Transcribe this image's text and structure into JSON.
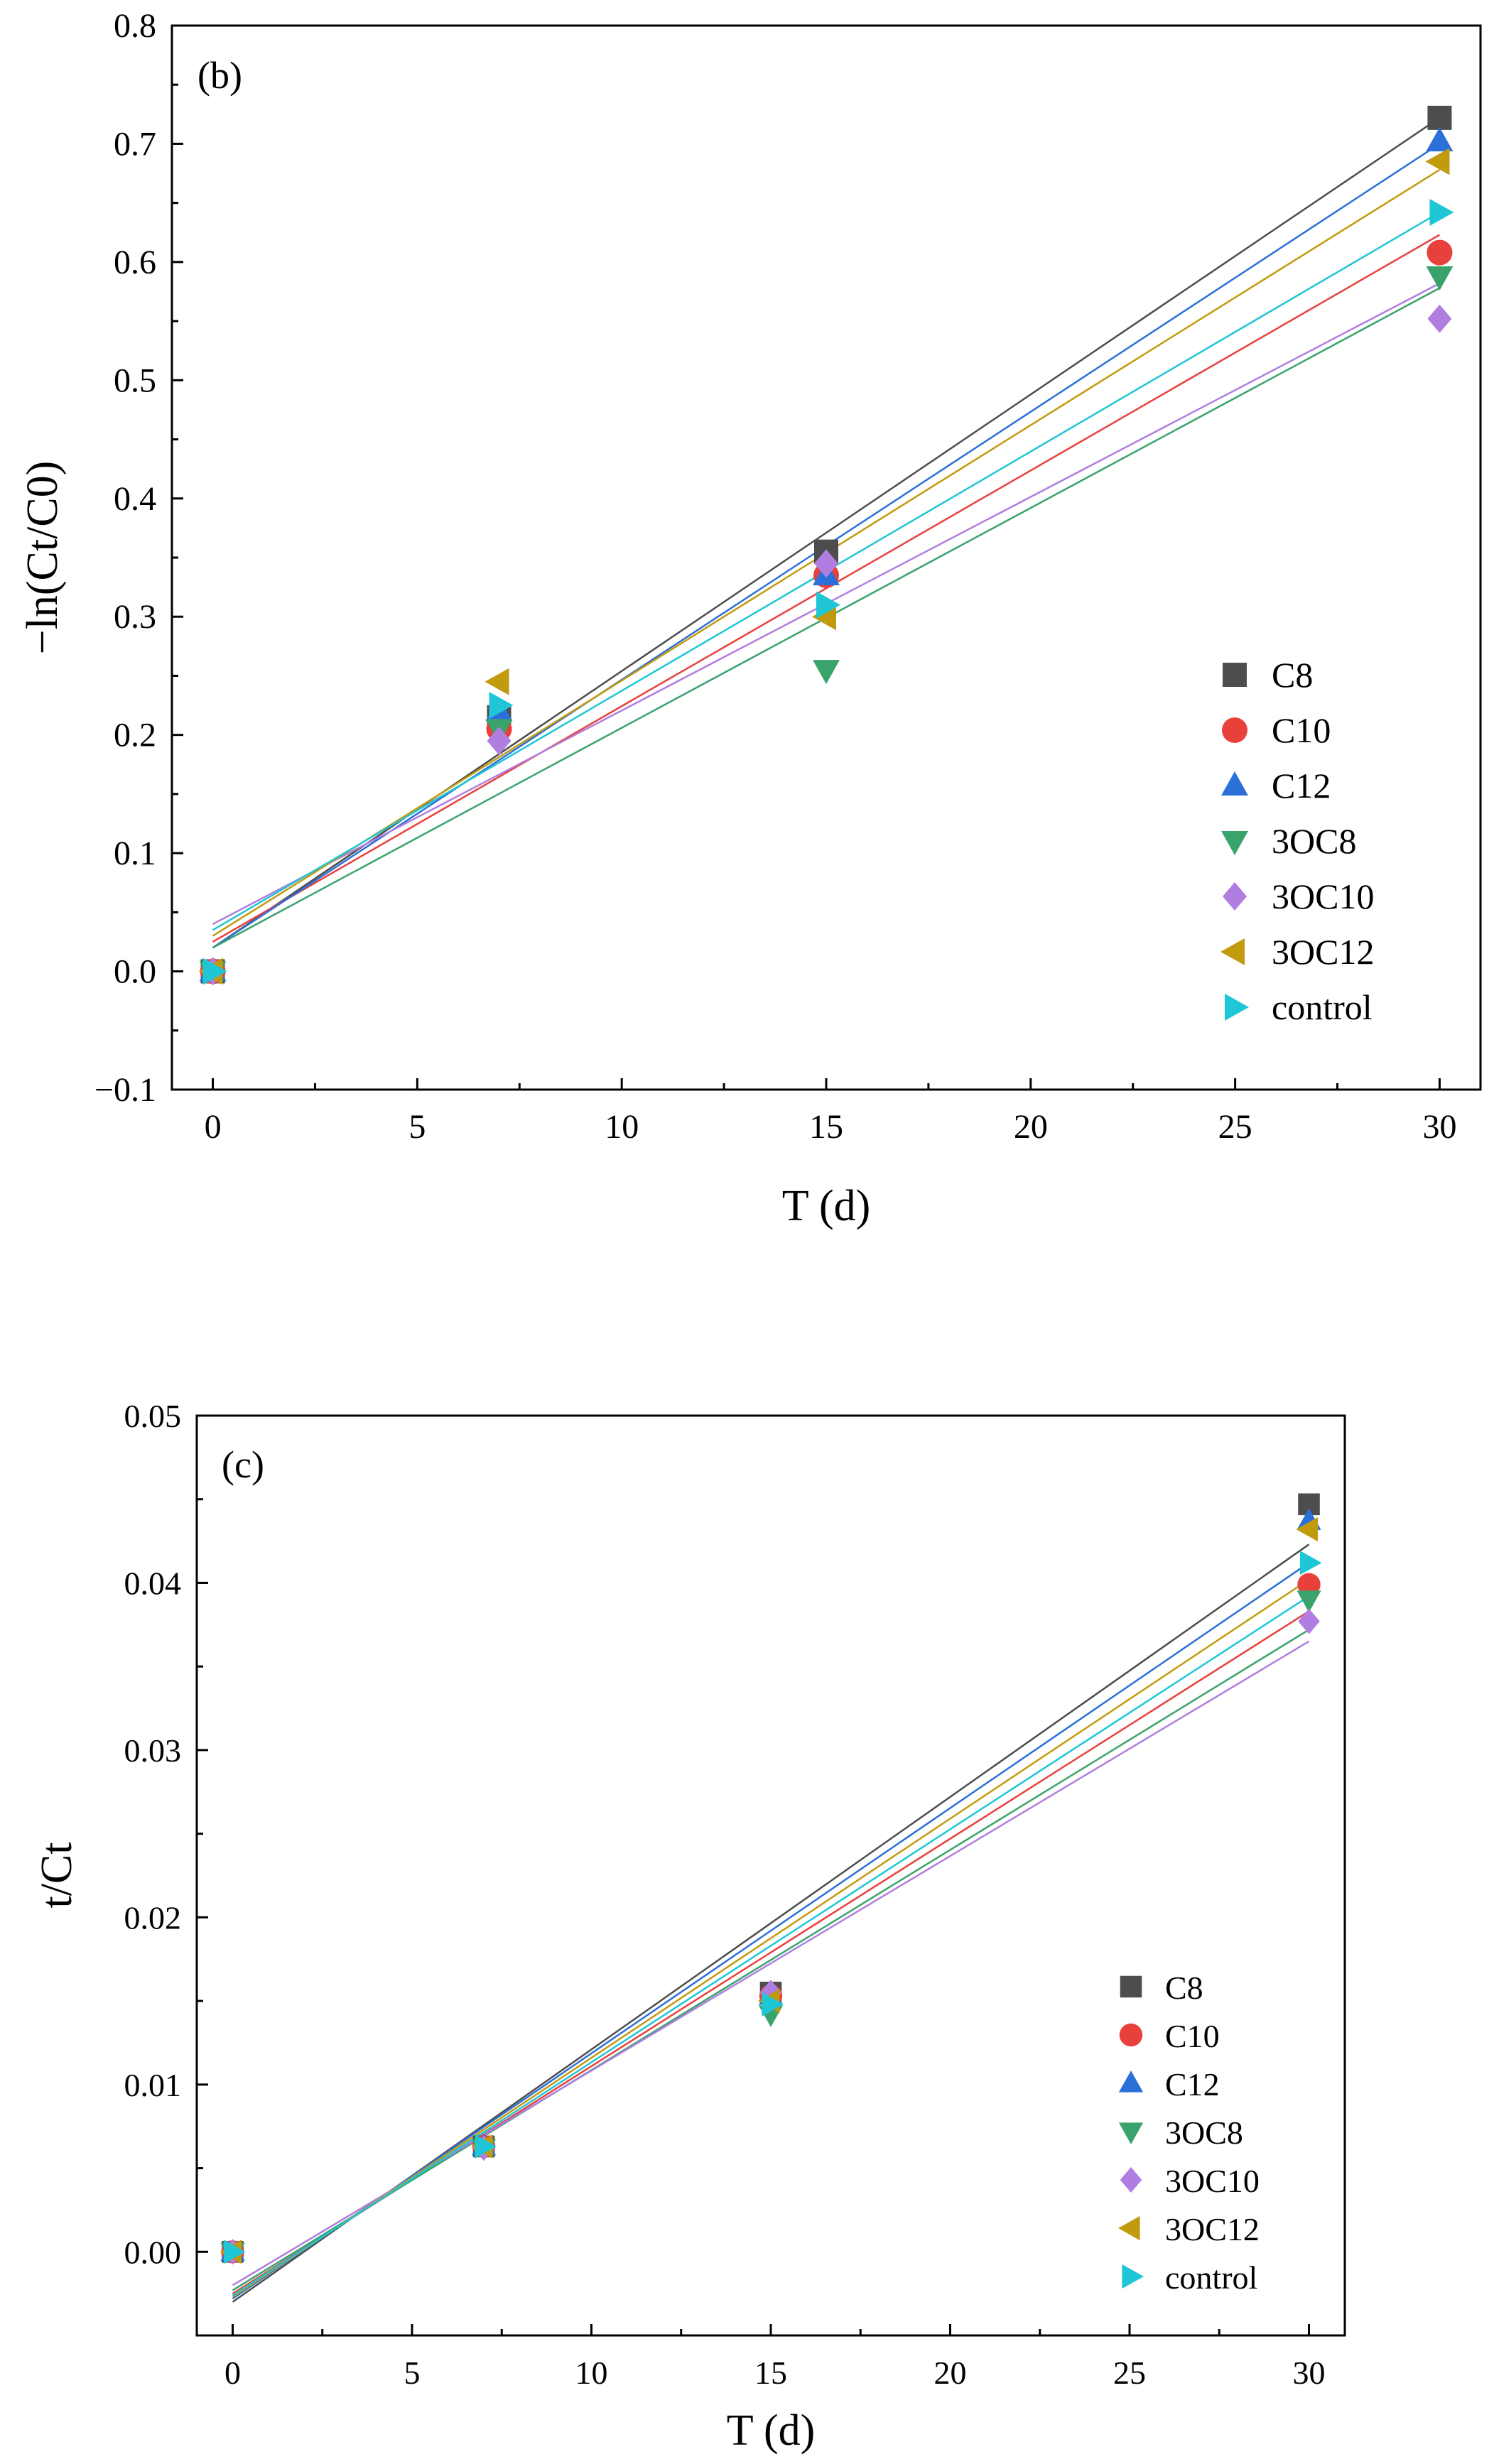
{
  "chart_data": [
    {
      "type": "scatter",
      "panel_label": "(b)",
      "title": "",
      "xlabel": "T (d)",
      "ylabel": "−ln(Ct/C0)",
      "xlim": [
        -1,
        31
      ],
      "ylim": [
        -0.1,
        0.8
      ],
      "xticks": [
        "0",
        "5",
        "10",
        "15",
        "20",
        "25",
        "30"
      ],
      "yticks": [
        "−0.1",
        "0.0",
        "0.1",
        "0.2",
        "0.3",
        "0.4",
        "0.5",
        "0.6",
        "0.7",
        "0.8"
      ],
      "legend_position": "bottom-right",
      "x": [
        0,
        7,
        15,
        30
      ],
      "series": [
        {
          "name": "C8",
          "marker": "square",
          "color": "#4d4d4d",
          "values": [
            0,
            0.215,
            0.355,
            0.722
          ],
          "fit": [
            0.02,
            0.722
          ]
        },
        {
          "name": "C10",
          "marker": "circle",
          "color": "#e8413c",
          "values": [
            0,
            0.205,
            0.335,
            0.608
          ],
          "fit": [
            0.025,
            0.623
          ]
        },
        {
          "name": "C12",
          "marker": "triangle-up",
          "color": "#2b70d8",
          "values": [
            0,
            0.22,
            0.335,
            0.702
          ],
          "fit": [
            0.02,
            0.7
          ]
        },
        {
          "name": "3OC8",
          "marker": "triangle-down",
          "color": "#3aa36b",
          "values": [
            0,
            0.205,
            0.255,
            0.588
          ],
          "fit": [
            0.02,
            0.578
          ]
        },
        {
          "name": "3OC10",
          "marker": "diamond",
          "color": "#b07ee0",
          "values": [
            0,
            0.195,
            0.345,
            0.552
          ],
          "fit": [
            0.04,
            0.582
          ]
        },
        {
          "name": "3OC12",
          "marker": "triangle-left",
          "color": "#c29a0e",
          "values": [
            0,
            0.245,
            0.3,
            0.685
          ],
          "fit": [
            0.03,
            0.678
          ]
        },
        {
          "name": "control",
          "marker": "triangle-right",
          "color": "#1ec6d6",
          "values": [
            0,
            0.225,
            0.31,
            0.642
          ],
          "fit": [
            0.035,
            0.642
          ]
        }
      ]
    },
    {
      "type": "scatter",
      "panel_label": "(c)",
      "title": "",
      "xlabel": "T (d)",
      "ylabel": "t/Ct",
      "xlim": [
        -1,
        31
      ],
      "ylim": [
        -0.005,
        0.05
      ],
      "xticks": [
        "0",
        "5",
        "10",
        "15",
        "20",
        "25",
        "30"
      ],
      "yticks": [
        "0.00",
        "0.01",
        "0.02",
        "0.03",
        "0.04",
        "0.05"
      ],
      "legend_position": "bottom-right",
      "x": [
        0,
        7,
        15,
        30
      ],
      "series": [
        {
          "name": "C8",
          "marker": "square",
          "color": "#4d4d4d",
          "values": [
            0,
            0.0063,
            0.0155,
            0.0447
          ],
          "fit": [
            -0.003,
            0.0423
          ]
        },
        {
          "name": "C10",
          "marker": "circle",
          "color": "#e8413c",
          "values": [
            0,
            0.0063,
            0.0153,
            0.0399
          ],
          "fit": [
            -0.0025,
            0.0383
          ]
        },
        {
          "name": "C12",
          "marker": "triangle-up",
          "color": "#2b70d8",
          "values": [
            0,
            0.0063,
            0.0153,
            0.0437
          ],
          "fit": [
            -0.0028,
            0.0412
          ]
        },
        {
          "name": "3OC8",
          "marker": "triangle-down",
          "color": "#3aa36b",
          "values": [
            0,
            0.0062,
            0.0142,
            0.039
          ],
          "fit": [
            -0.0023,
            0.0372
          ]
        },
        {
          "name": "3OC10",
          "marker": "diamond",
          "color": "#b07ee0",
          "values": [
            0,
            0.0062,
            0.0155,
            0.0377
          ],
          "fit": [
            -0.002,
            0.0365
          ]
        },
        {
          "name": "3OC12",
          "marker": "triangle-left",
          "color": "#c29a0e",
          "values": [
            0,
            0.0063,
            0.015,
            0.0432
          ],
          "fit": [
            -0.0027,
            0.0402
          ]
        },
        {
          "name": "control",
          "marker": "triangle-right",
          "color": "#1ec6d6",
          "values": [
            0,
            0.0063,
            0.0148,
            0.0412
          ],
          "fit": [
            -0.0026,
            0.0392
          ]
        }
      ]
    }
  ]
}
